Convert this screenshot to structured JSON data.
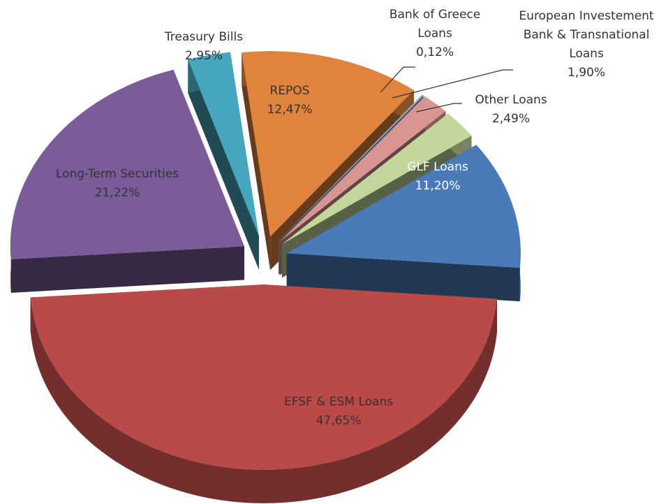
{
  "chart_data": {
    "type": "pie",
    "categories": [
      "REPOS",
      "Bank of Greece Loans",
      "European Investement Bank & Transnational Loans",
      "Other Loans",
      "GLF Loans",
      "EFSF & ESM Loans",
      "Long-Term Securities",
      "Treasury Bills"
    ],
    "values": [
      12.47,
      0.12,
      1.9,
      2.49,
      11.2,
      47.65,
      21.22,
      2.95
    ],
    "value_labels": [
      "12,47%",
      "0,12%",
      "1,90%",
      "2,49%",
      "11,20%",
      "47,65%",
      "21,22%",
      "2,95%"
    ],
    "colors": [
      "#e0843d",
      "#95b3d7",
      "#d99594",
      "#c3d69b",
      "#4a7ab8",
      "#b94a48",
      "#7a5c98",
      "#46a6bd"
    ]
  }
}
